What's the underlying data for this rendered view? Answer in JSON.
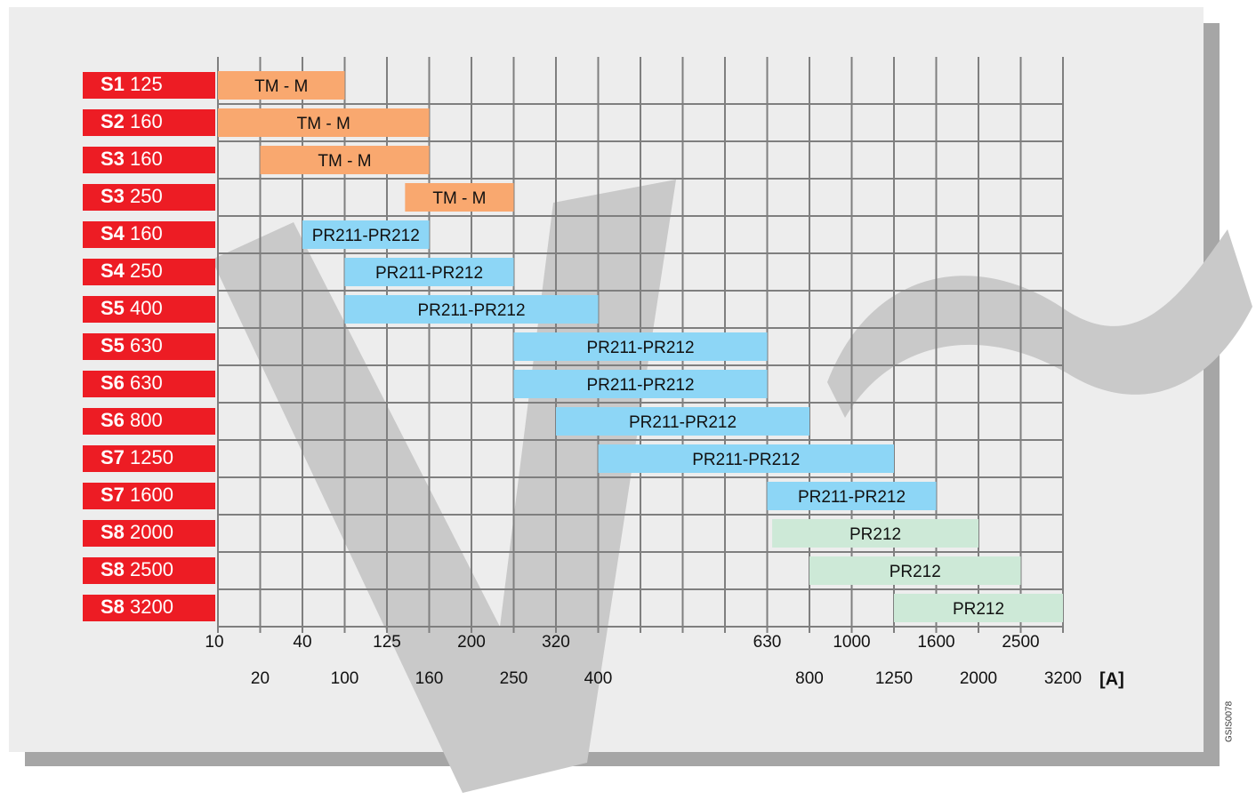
{
  "chart_data": {
    "type": "range-bar",
    "x_label": "[A]",
    "code": "GSIS0078",
    "categories": [
      10,
      20,
      40,
      100,
      125,
      160,
      200,
      250,
      320,
      400,
      null,
      null,
      null,
      630,
      800,
      1000,
      1250,
      1600,
      2000,
      2500,
      3200
    ],
    "grid": true,
    "rows": [
      {
        "frame": "S1",
        "rating": 125,
        "release": "TM - M",
        "from": 10,
        "to": 100,
        "color": "#f9a86f"
      },
      {
        "frame": "S2",
        "rating": 160,
        "release": "TM - M",
        "from": 10,
        "to": 160,
        "color": "#f9a86f"
      },
      {
        "frame": "S3",
        "rating": 160,
        "release": "TM - M",
        "from": 20,
        "to": 160,
        "color": "#f9a86f"
      },
      {
        "frame": "S3",
        "rating": 250,
        "release": "TM - M",
        "from": 140,
        "to": 250,
        "color": "#f9a86f"
      },
      {
        "frame": "S4",
        "rating": 160,
        "release": "PR211-PR212",
        "from": 40,
        "to": 160,
        "color": "#8dd6f6"
      },
      {
        "frame": "S4",
        "rating": 250,
        "release": "PR211-PR212",
        "from": 100,
        "to": 250,
        "color": "#8dd6f6"
      },
      {
        "frame": "S5",
        "rating": 400,
        "release": "PR211-PR212",
        "from": 100,
        "to": 400,
        "color": "#8dd6f6"
      },
      {
        "frame": "S5",
        "rating": 630,
        "release": "PR211-PR212",
        "from": 250,
        "to": 630,
        "color": "#8dd6f6"
      },
      {
        "frame": "S6",
        "rating": 630,
        "release": "PR211-PR212",
        "from": 250,
        "to": 630,
        "color": "#8dd6f6"
      },
      {
        "frame": "S6",
        "rating": 800,
        "release": "PR211-PR212",
        "from": 320,
        "to": 800,
        "color": "#8dd6f6"
      },
      {
        "frame": "S7",
        "rating": 1250,
        "release": "PR211-PR212",
        "from": 400,
        "to": 1250,
        "color": "#8dd6f6"
      },
      {
        "frame": "S7",
        "rating": 1600,
        "release": "PR211-PR212",
        "from": 630,
        "to": 1600,
        "color": "#8dd6f6"
      },
      {
        "frame": "S8",
        "rating": 2000,
        "release": "PR212",
        "from": 650,
        "to": 2000,
        "color": "#cde9d7"
      },
      {
        "frame": "S8",
        "rating": 2500,
        "release": "PR212",
        "from": 800,
        "to": 2500,
        "color": "#cde9d7"
      },
      {
        "frame": "S8",
        "rating": 3200,
        "release": "PR212",
        "from": 1250,
        "to": 3200,
        "color": "#cde9d7"
      }
    ],
    "label_color": "#ed1c24"
  }
}
